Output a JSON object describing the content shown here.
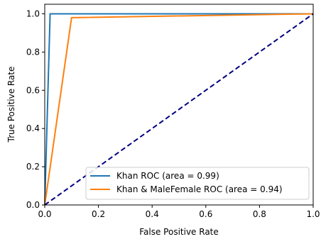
{
  "chart_data": {
    "type": "line",
    "title": "",
    "xlabel": "False Positive Rate",
    "ylabel": "True Positive Rate",
    "xlim": [
      0.0,
      1.0
    ],
    "ylim": [
      0.0,
      1.05
    ],
    "xticks": [
      "0.0",
      "0.2",
      "0.4",
      "0.6",
      "0.8",
      "1.0"
    ],
    "yticks": [
      "0.0",
      "0.2",
      "0.4",
      "0.6",
      "0.8",
      "1.0"
    ],
    "grid": false,
    "legend_position": "lower-right",
    "series": [
      {
        "name": "Khan ROC (area = 0.99)",
        "color": "#1f77b4",
        "style": "solid",
        "x": [
          0.0,
          0.02,
          1.0
        ],
        "y": [
          0.0,
          1.0,
          1.0
        ]
      },
      {
        "name": "Khan & MaleFemale ROC (area = 0.94)",
        "color": "#ff7f0e",
        "style": "solid",
        "x": [
          0.0,
          0.1,
          1.0
        ],
        "y": [
          0.0,
          0.98,
          1.0
        ]
      },
      {
        "color": "#000080",
        "style": "dashed",
        "x": [
          0.0,
          1.0
        ],
        "y": [
          0.0,
          1.0
        ]
      }
    ]
  }
}
